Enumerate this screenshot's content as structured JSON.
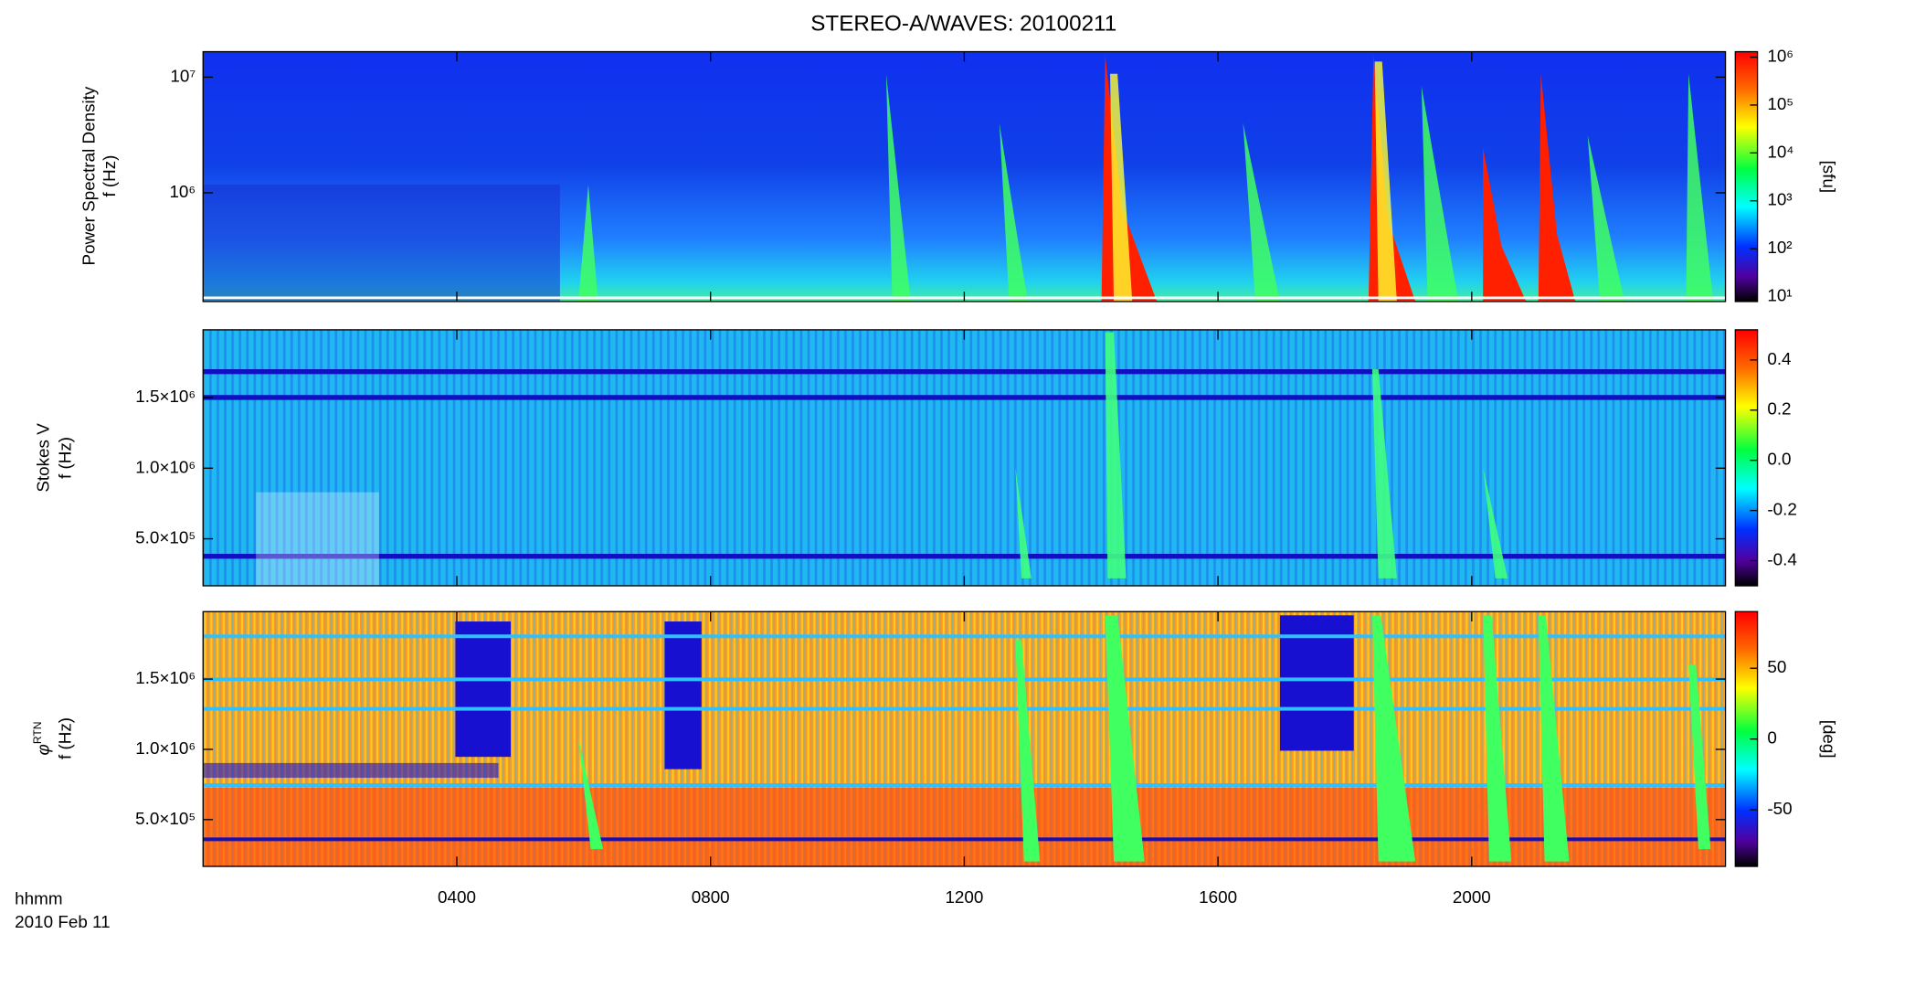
{
  "chart_data": [
    {
      "type": "spectrogram",
      "title": "STEREO-A/WAVES: 20100211",
      "ylabel": [
        "Power Spectral Density",
        "f (Hz)"
      ],
      "log": true,
      "ylim": [
        115000,
        16600000
      ],
      "yticks": [
        {
          "value": 1000000,
          "label": "10⁶"
        },
        {
          "value": 10000000,
          "label": "10⁷"
        }
      ],
      "colorbar_log": true,
      "clim": [
        7.9,
        1300000
      ],
      "cticks": [
        {
          "value": 10,
          "label": "10¹"
        },
        {
          "value": 100,
          "label": "10²"
        },
        {
          "value": 1000,
          "label": "10³"
        },
        {
          "value": 10000,
          "label": "10⁴"
        },
        {
          "value": 100000,
          "label": "10⁵"
        },
        {
          "value": 1000000,
          "label": "10⁶"
        }
      ],
      "colorbar_label": "[sfu]"
    },
    {
      "type": "spectrogram",
      "ylabel": [
        "Stokes V",
        "f (Hz)"
      ],
      "log": false,
      "ylim": [
        167000,
        1980000
      ],
      "yticks": [
        {
          "value": 500000,
          "label": "5.0×10⁵"
        },
        {
          "value": 1000000,
          "label": "1.0×10⁶"
        },
        {
          "value": 1500000,
          "label": "1.5×10⁶"
        }
      ],
      "colorbar_log": false,
      "clim": [
        -0.5,
        0.52
      ],
      "cticks": [
        -0.4,
        -0.2,
        {
          "value": 0,
          "label": "0.0"
        },
        0.2,
        0.4
      ]
    },
    {
      "type": "spectrogram",
      "ylabel_symbol": "φ",
      "ylabel_subscript": "RTN",
      "ylabel": [
        "f (Hz)"
      ],
      "log": false,
      "ylim": [
        167000,
        1980000
      ],
      "yticks": [
        {
          "value": 500000,
          "label": "5.0×10⁵"
        },
        {
          "value": 1000000,
          "label": "1.0×10⁶"
        },
        {
          "value": 1500000,
          "label": "1.5×10⁶"
        }
      ],
      "colorbar_log": false,
      "clim": [
        -90,
        90
      ],
      "cticks": [
        -50,
        0,
        50
      ],
      "colorbar_label": "[deg]",
      "xlim": [
        0,
        24
      ],
      "xticks": [
        {
          "value": 4,
          "label": "0400"
        },
        {
          "value": 8,
          "label": "0800"
        },
        {
          "value": 12,
          "label": "1200"
        },
        {
          "value": 16,
          "label": "1600"
        },
        {
          "value": 20,
          "label": "2000"
        }
      ],
      "xlabel": [
        "hhmm",
        "2010 Feb 11"
      ]
    }
  ]
}
